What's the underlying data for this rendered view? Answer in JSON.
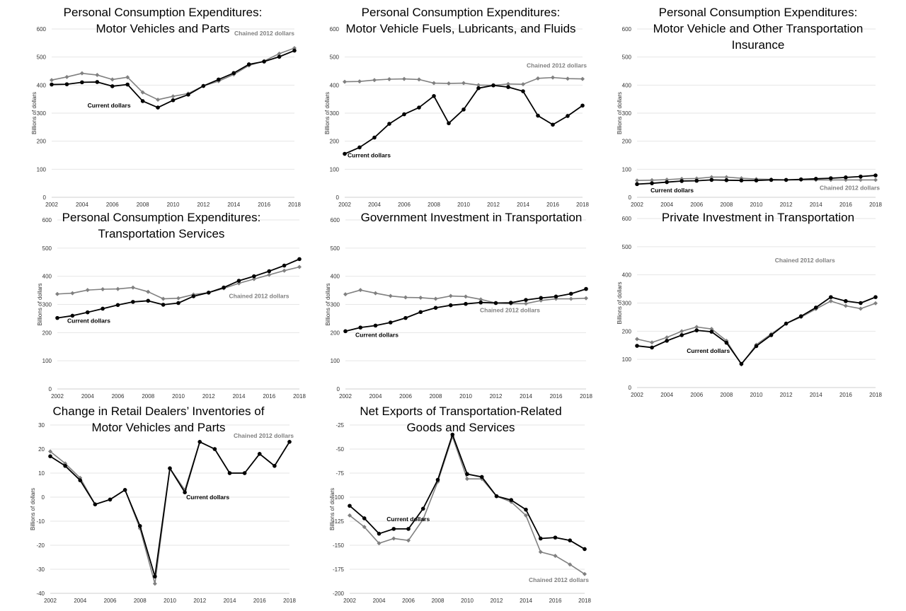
{
  "colors": {
    "current": "#000000",
    "chained": "#808080",
    "grid": "#e6e6e6",
    "axis": "#cfcfcf"
  },
  "chart_data": [
    {
      "type": "line",
      "title": [
        "Personal Consumption Expenditures:",
        "Motor Vehicles and Parts"
      ],
      "xlabel": "",
      "ylabel": "Billions of dollars",
      "x": [
        2002,
        2003,
        2004,
        2005,
        2006,
        2007,
        2008,
        2009,
        2010,
        2011,
        2012,
        2013,
        2014,
        2015,
        2016,
        2017,
        2018
      ],
      "xticks": [
        "2002",
        "2004",
        "2006",
        "2008",
        "2010",
        "2012",
        "2014",
        "2016",
        "2018"
      ],
      "ylim": [
        0,
        600
      ],
      "yticks": [
        "0",
        "100",
        "200",
        "300",
        "400",
        "500",
        "600"
      ],
      "series": [
        {
          "name": "Current dollars",
          "label_position": "below",
          "values": [
            402,
            403,
            410,
            411,
            396,
            402,
            343,
            320,
            346,
            366,
            397,
            420,
            443,
            474,
            484,
            501,
            523
          ]
        },
        {
          "name": "Chained 2012 dollars",
          "label_position": "top-right",
          "values": [
            418,
            429,
            442,
            436,
            420,
            428,
            374,
            348,
            360,
            370,
            397,
            414,
            438,
            470,
            486,
            512,
            532
          ]
        }
      ]
    },
    {
      "type": "line",
      "title": [
        "Personal Consumption Expenditures:",
        "Motor Vehicle Fuels, Lubricants, and Fluids"
      ],
      "xlabel": "",
      "ylabel": "Billions of dollars",
      "x": [
        2002,
        2003,
        2004,
        2005,
        2006,
        2007,
        2008,
        2009,
        2010,
        2011,
        2012,
        2013,
        2014,
        2015,
        2016,
        2017,
        2018
      ],
      "xticks": [
        "2002",
        "2004",
        "2006",
        "2008",
        "2010",
        "2012",
        "2014",
        "2016",
        "2018"
      ],
      "ylim": [
        0,
        600
      ],
      "yticks": [
        "0",
        "100",
        "200",
        "300",
        "400",
        "500",
        "600"
      ],
      "series": [
        {
          "name": "Current dollars",
          "label_position": "bottom-left",
          "values": [
            155,
            178,
            213,
            262,
            296,
            320,
            361,
            264,
            313,
            389,
            399,
            393,
            378,
            291,
            259,
            290,
            327
          ]
        },
        {
          "name": "Chained 2012 dollars",
          "label_position": "top-right",
          "values": [
            412,
            413,
            418,
            421,
            422,
            420,
            407,
            406,
            407,
            400,
            399,
            404,
            403,
            424,
            427,
            423,
            422
          ]
        }
      ]
    },
    {
      "type": "line",
      "title": [
        "Personal Consumption Expenditures:",
        "Motor Vehicle and Other Transportation",
        "Insurance"
      ],
      "xlabel": "",
      "ylabel": "Billions of dollars",
      "x": [
        2002,
        2003,
        2004,
        2005,
        2006,
        2007,
        2008,
        2009,
        2010,
        2011,
        2012,
        2013,
        2014,
        2015,
        2016,
        2017,
        2018
      ],
      "xticks": [
        "2002",
        "2004",
        "2006",
        "2008",
        "2010",
        "2012",
        "2014",
        "2016",
        "2018"
      ],
      "ylim": [
        0,
        600
      ],
      "yticks": [
        "0",
        "100",
        "200",
        "300",
        "400",
        "500",
        "600"
      ],
      "series": [
        {
          "name": "Current dollars",
          "label_position": "bottom-left",
          "values": [
            47,
            50,
            54,
            58,
            59,
            62,
            61,
            60,
            60,
            62,
            62,
            64,
            66,
            68,
            71,
            74,
            78
          ]
        },
        {
          "name": "Chained 2012 dollars",
          "label_position": "bottom-right",
          "values": [
            60,
            61,
            63,
            66,
            67,
            72,
            72,
            68,
            65,
            64,
            62,
            62,
            62,
            62,
            62,
            62,
            62
          ]
        }
      ]
    },
    {
      "type": "line",
      "title": [
        "Personal Consumption Expenditures:",
        "Transportation Services"
      ],
      "xlabel": "",
      "ylabel": "Billions of dollars",
      "x": [
        2002,
        2003,
        2004,
        2005,
        2006,
        2007,
        2008,
        2009,
        2010,
        2011,
        2012,
        2013,
        2014,
        2015,
        2016,
        2017,
        2018
      ],
      "xticks": [
        "2002",
        "2004",
        "2006",
        "2008",
        "2010",
        "2012",
        "2014",
        "2016",
        "2018"
      ],
      "ylim": [
        0,
        600
      ],
      "yticks": [
        "0",
        "100",
        "200",
        "300",
        "400",
        "500",
        "600"
      ],
      "series": [
        {
          "name": "Current dollars",
          "label_position": "bottom-left",
          "values": [
            252,
            260,
            272,
            285,
            298,
            309,
            313,
            299,
            305,
            329,
            342,
            360,
            384,
            400,
            418,
            438,
            461
          ]
        },
        {
          "name": "Chained 2012 dollars",
          "label_position": "right",
          "values": [
            337,
            340,
            351,
            354,
            355,
            360,
            345,
            320,
            322,
            335,
            342,
            357,
            375,
            390,
            405,
            420,
            433
          ]
        }
      ]
    },
    {
      "type": "line",
      "title": [
        "Government Investment in Transportation"
      ],
      "xlabel": "",
      "ylabel": "Billions of dollars",
      "x": [
        2002,
        2003,
        2004,
        2005,
        2006,
        2007,
        2008,
        2009,
        2010,
        2011,
        2012,
        2013,
        2014,
        2015,
        2016,
        2017,
        2018
      ],
      "xticks": [
        "2002",
        "2004",
        "2006",
        "2008",
        "2010",
        "2012",
        "2014",
        "2016",
        "2018"
      ],
      "ylim": [
        0,
        600
      ],
      "yticks": [
        "0",
        "100",
        "200",
        "300",
        "400",
        "500",
        "600"
      ],
      "series": [
        {
          "name": "Current dollars",
          "label_position": "bottom-left",
          "values": [
            205,
            218,
            225,
            236,
            252,
            273,
            288,
            297,
            302,
            307,
            305,
            306,
            316,
            323,
            328,
            338,
            355
          ]
        },
        {
          "name": "Chained 2012 dollars",
          "label_position": "below",
          "values": [
            336,
            351,
            340,
            330,
            325,
            324,
            320,
            330,
            328,
            318,
            305,
            303,
            303,
            314,
            320,
            320,
            322
          ]
        }
      ]
    },
    {
      "type": "line",
      "title": [
        "Private Investment in Transportation"
      ],
      "xlabel": "",
      "ylabel": "Billions of dollars",
      "x": [
        2002,
        2003,
        2004,
        2005,
        2006,
        2007,
        2008,
        2009,
        2010,
        2011,
        2012,
        2013,
        2014,
        2015,
        2016,
        2017,
        2018
      ],
      "xticks": [
        "2002",
        "2004",
        "2006",
        "2008",
        "2010",
        "2012",
        "2014",
        "2016",
        "2018"
      ],
      "ylim": [
        0,
        600
      ],
      "yticks": [
        "0",
        "100",
        "200",
        "300",
        "400",
        "500",
        "600"
      ],
      "series": [
        {
          "name": "Current dollars",
          "label_position": "below",
          "values": [
            148,
            142,
            166,
            186,
            203,
            198,
            159,
            84,
            147,
            186,
            227,
            253,
            284,
            321,
            307,
            300,
            321
          ]
        },
        {
          "name": "Chained 2012 dollars",
          "label_position": "middle-right",
          "values": [
            172,
            160,
            178,
            200,
            215,
            208,
            166,
            82,
            152,
            190,
            227,
            250,
            279,
            307,
            290,
            280,
            299
          ]
        }
      ]
    },
    {
      "type": "line",
      "title": [
        "Change in Retail Dealers’ Inventories of",
        "Motor Vehicles and Parts"
      ],
      "xlabel": "",
      "ylabel": "Billions of dollars",
      "x": [
        2002,
        2003,
        2004,
        2005,
        2006,
        2007,
        2008,
        2009,
        2010,
        2011,
        2012,
        2013,
        2014,
        2015,
        2016,
        2017,
        2018
      ],
      "xticks": [
        "2002",
        "2004",
        "2006",
        "2008",
        "2010",
        "2012",
        "2014",
        "2016",
        "2018"
      ],
      "ylim": [
        -40,
        30
      ],
      "yticks": [
        "-40",
        "-30",
        "-20",
        "-10",
        "0",
        "10",
        "20",
        "30"
      ],
      "series": [
        {
          "name": "Current dollars",
          "label_position": "middle",
          "values": [
            17,
            13,
            7,
            -3,
            -1,
            3,
            -12,
            -33,
            12,
            2,
            23,
            20,
            10,
            10,
            18,
            13,
            23
          ]
        },
        {
          "name": "Chained 2012 dollars",
          "label_position": "top-right",
          "values": [
            19,
            14,
            8,
            -3,
            -1,
            3,
            -13,
            -36,
            12,
            3,
            23,
            20,
            10,
            10,
            18,
            13,
            23
          ]
        }
      ]
    },
    {
      "type": "line",
      "title": [
        "Net Exports of Transportation-Related",
        "Goods and Services"
      ],
      "xlabel": "",
      "ylabel": "Billions of dollars",
      "x": [
        2002,
        2003,
        2004,
        2005,
        2006,
        2007,
        2008,
        2009,
        2010,
        2011,
        2012,
        2013,
        2014,
        2015,
        2016,
        2017,
        2018
      ],
      "xticks": [
        "2002",
        "2004",
        "2006",
        "2008",
        "2010",
        "2012",
        "2014",
        "2016",
        "2018"
      ],
      "ylim": [
        -200,
        -25
      ],
      "yticks": [
        "-200",
        "-175",
        "-150",
        "-125",
        "-100",
        "-75",
        "-50",
        "-25"
      ],
      "series": [
        {
          "name": "Current dollars",
          "label_position": "left",
          "values": [
            -109,
            -122,
            -138,
            -133,
            -133,
            -112,
            -82,
            -35,
            -76,
            -79,
            -99,
            -103,
            -113,
            -143,
            -142,
            -145,
            -154
          ]
        },
        {
          "name": "Chained 2012 dollars",
          "label_position": "bottom-right",
          "values": [
            -119,
            -131,
            -148,
            -143,
            -145,
            -123,
            -84,
            -37,
            -81,
            -81,
            -99,
            -105,
            -119,
            -157,
            -161,
            -170,
            -180
          ]
        }
      ]
    }
  ]
}
